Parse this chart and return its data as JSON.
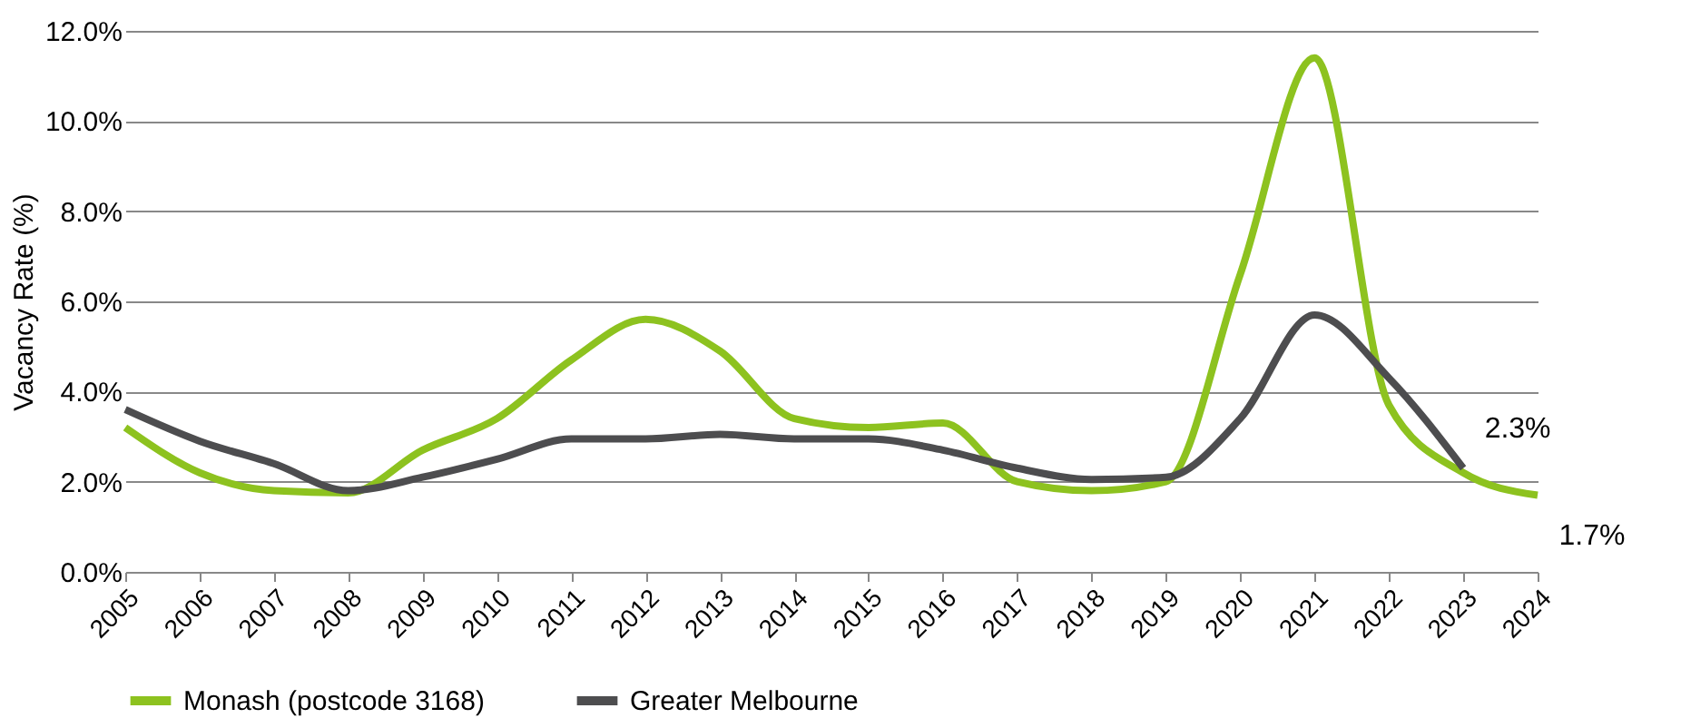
{
  "chart_data": {
    "type": "line",
    "ylabel": "Vacancy Rate (%)",
    "x": [
      2005,
      2006,
      2007,
      2008,
      2009,
      2010,
      2011,
      2012,
      2013,
      2014,
      2015,
      2016,
      2017,
      2018,
      2019,
      2020,
      2021,
      2022,
      2023,
      2024
    ],
    "series": [
      {
        "name": "Monash (postcode 3168)",
        "color": "#8dc21f",
        "values": [
          3.2,
          2.2,
          1.8,
          1.75,
          2.7,
          3.4,
          4.7,
          5.6,
          4.9,
          3.4,
          3.2,
          3.3,
          2.0,
          1.8,
          2.0,
          6.6,
          11.4,
          3.7,
          2.2,
          1.7
        ]
      },
      {
        "name": "Greater Melbourne",
        "color": "#4d4d4f",
        "values": [
          3.6,
          2.9,
          2.4,
          1.8,
          2.1,
          2.5,
          2.95,
          2.95,
          3.05,
          2.95,
          2.95,
          2.7,
          2.3,
          2.05,
          2.1,
          3.4,
          5.7,
          4.3,
          2.3,
          null
        ]
      }
    ],
    "xlim": [
      2005,
      2024
    ],
    "xticks": [
      2005,
      2006,
      2007,
      2008,
      2009,
      2010,
      2011,
      2012,
      2013,
      2014,
      2015,
      2016,
      2017,
      2018,
      2019,
      2020,
      2021,
      2022,
      2023,
      2024
    ],
    "ylim": [
      0,
      12
    ],
    "yticks": [
      {
        "value": 0,
        "label": "0.0%"
      },
      {
        "value": 2,
        "label": "2.0%"
      },
      {
        "value": 4,
        "label": "4.0%"
      },
      {
        "value": 6,
        "label": "6.0%"
      },
      {
        "value": 8,
        "label": "8.0%"
      },
      {
        "value": 10,
        "label": "10.0%"
      },
      {
        "value": 12,
        "label": "12.0%"
      }
    ],
    "annotations": [
      {
        "text": "2.3%",
        "x": 2023,
        "y": 2.3
      },
      {
        "text": "1.7%",
        "x": 2024,
        "y": 1.7
      }
    ],
    "grid": "y",
    "legend": "bottom",
    "marker": "none",
    "line_style": "solid"
  }
}
